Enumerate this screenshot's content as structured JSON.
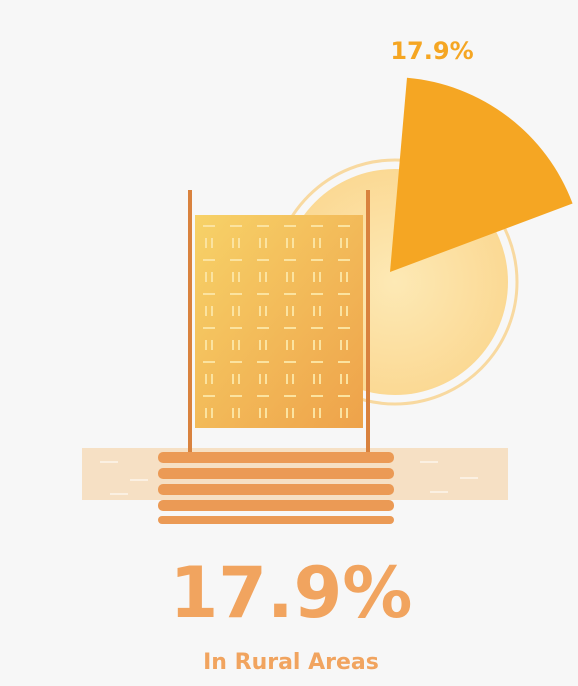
{
  "chart_data": {
    "type": "pie",
    "title": "In Rural Areas",
    "values": [
      17.9
    ],
    "value_labels": [
      "17.9%"
    ],
    "color": "#f5a623"
  }
}
